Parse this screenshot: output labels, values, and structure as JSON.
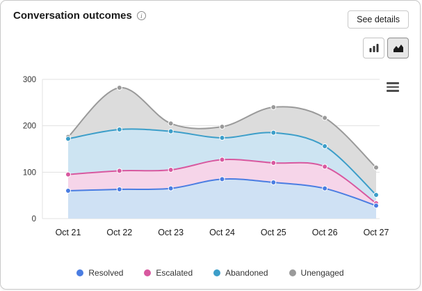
{
  "header": {
    "title": "Conversation outcomes",
    "info_icon": "info",
    "see_details_label": "See details"
  },
  "toolbar": {
    "chart_type_buttons": [
      {
        "name": "bar",
        "selected": false
      },
      {
        "name": "area",
        "selected": true
      }
    ]
  },
  "chart_data": {
    "type": "area",
    "title": "Conversation outcomes",
    "categories": [
      "Oct 21",
      "Oct 22",
      "Oct 23",
      "Oct 24",
      "Oct 25",
      "Oct 26",
      "Oct 27"
    ],
    "series": [
      {
        "name": "Resolved",
        "color": "#4a7de2",
        "fill": "#cfe1f4",
        "values": [
          60,
          63,
          65,
          85,
          78,
          65,
          28
        ]
      },
      {
        "name": "Escalated",
        "color": "#d8589f",
        "fill": "#f6d5e9",
        "values": [
          95,
          103,
          105,
          127,
          120,
          112,
          33
        ]
      },
      {
        "name": "Abandoned",
        "color": "#3c9ec9",
        "fill": "#cde4f2",
        "values": [
          172,
          192,
          188,
          174,
          185,
          156,
          51
        ]
      },
      {
        "name": "Unengaged",
        "color": "#9a9a9a",
        "fill": "#dcdcdc",
        "values": [
          176,
          282,
          205,
          198,
          240,
          217,
          110
        ]
      }
    ],
    "xlabel": "",
    "ylabel": "",
    "ylim": [
      0,
      300
    ],
    "yticks": [
      0,
      100,
      200,
      300
    ],
    "grid": true,
    "legend_position": "bottom"
  }
}
